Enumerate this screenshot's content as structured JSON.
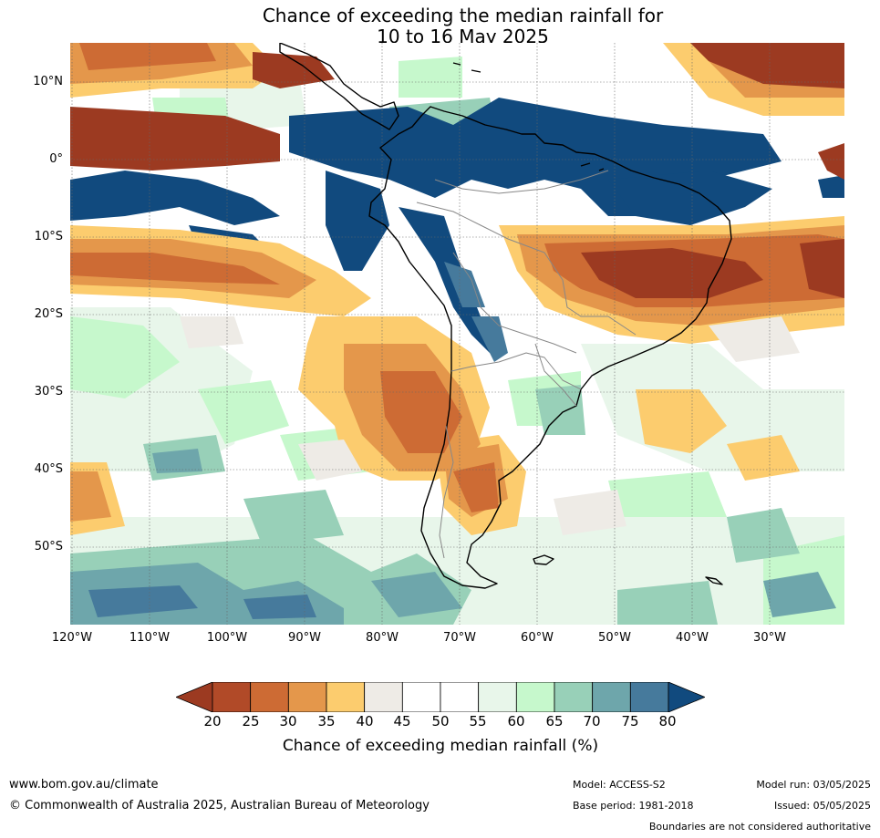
{
  "title_line1": "Chance of exceeding the median rainfall for",
  "title_line2": "10 to 16 May 2025",
  "lat_labels": [
    "10°N",
    "0°",
    "10°S",
    "20°S",
    "30°S",
    "40°S",
    "50°S"
  ],
  "lon_labels": [
    "120°W",
    "110°W",
    "100°W",
    "90°W",
    "80°W",
    "70°W",
    "60°W",
    "50°W",
    "40°W",
    "30°W"
  ],
  "legend": {
    "ticks": [
      "20",
      "25",
      "30",
      "35",
      "40",
      "45",
      "50",
      "55",
      "60",
      "65",
      "70",
      "75",
      "80"
    ],
    "colors": [
      "#9c3a21",
      "#b14a28",
      "#cd6b34",
      "#e4974b",
      "#fccc6e",
      "#eeebe6",
      "#ffffff",
      "#ffffff",
      "#e8f6ea",
      "#c6f8cc",
      "#98d0b8",
      "#6ea6ab",
      "#467a9c",
      "#114a7e"
    ],
    "title": "Chance of exceeding median rainfall (%)"
  },
  "footer": {
    "website": "www.bom.gov.au/climate",
    "copyright": "© Commonwealth of Australia 2025, Australian Bureau of Meteorology",
    "model": "Model: ACCESS-S2",
    "base_period": "Base period: 1981-2018",
    "model_run": "Model run: 03/05/2025",
    "issued": "Issued: 05/05/2025",
    "disclaimer": "Boundaries are not considered authoritative"
  }
}
